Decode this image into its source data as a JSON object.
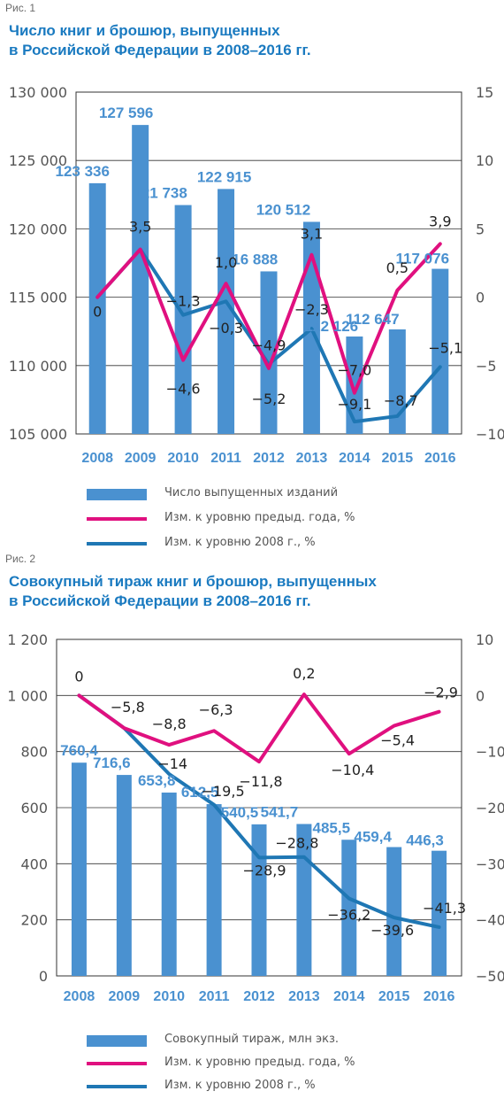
{
  "colors": {
    "bar": "#4a91d0",
    "line_prev": "#e0107f",
    "line_2008": "#1f77b4",
    "bar_label": "#4a91d0",
    "title": "#1a7ac0"
  },
  "charts": [
    {
      "fig_label": "Рис. 1",
      "title_lines": [
        "Число книг и брошюр, выпущенных",
        "в Российской Федерации в 2008–2016 гг."
      ],
      "legend": [
        "Число выпущенных изданий",
        "Изм. к уровню предыд. года, %",
        "Изм. к уровню 2008 г., %"
      ]
    },
    {
      "fig_label": "Рис. 2",
      "title_lines": [
        "Совокупный тираж книг и брошюр, выпущенных",
        "в Российской Федерации в 2008–2016 гг."
      ],
      "legend": [
        "Совокупный тираж, млн экз.",
        "Изм. к уровню предыд. года, %",
        "Изм. к уровню 2008 г., %"
      ]
    }
  ],
  "chart_data": [
    {
      "type": "bar",
      "categories": [
        "2008",
        "2009",
        "2010",
        "2011",
        "2012",
        "2013",
        "2014",
        "2015",
        "2016"
      ],
      "ylim": [
        105000,
        130000
      ],
      "y_ticks": [
        "105 000",
        "110 000",
        "115 000",
        "120 000",
        "125 000",
        "130 000"
      ],
      "y2lim": [
        -10,
        15
      ],
      "y2_ticks": [
        "−10",
        "−5",
        "0",
        "5",
        "10",
        "15"
      ],
      "series": [
        {
          "name": "Число выпущенных изданий",
          "kind": "bar",
          "axis": "left",
          "values": [
            123336,
            127596,
            121738,
            122915,
            116888,
            120512,
            112126,
            112647,
            117076
          ],
          "labels": [
            "123 336",
            "127 596",
            "121 738",
            "122 915",
            "116 888",
            "120 512",
            "112 126",
            "112 647",
            "117 076"
          ]
        },
        {
          "name": "Изм. к уровню предыд. года, %",
          "kind": "line",
          "axis": "right",
          "values": [
            0,
            3.5,
            -4.6,
            1.0,
            -5.2,
            3.1,
            -7.0,
            0.5,
            3.9
          ],
          "labels": [
            "0",
            "3,5",
            "−4,6",
            "1,0",
            "−5,2",
            "3,1",
            "−7,0",
            "0,5",
            "3,9"
          ]
        },
        {
          "name": "Изм. к уровню 2008 г., %",
          "kind": "line",
          "axis": "right",
          "values": [
            null,
            null,
            -1.3,
            -0.3,
            -4.9,
            -2.3,
            -9.1,
            -8.7,
            -5.1
          ],
          "labels": [
            null,
            null,
            "−1,3",
            "−0,3",
            "−4,9",
            "−2,3",
            "−9,1",
            "−8,7",
            "−5,1"
          ]
        }
      ]
    },
    {
      "type": "bar",
      "categories": [
        "2008",
        "2009",
        "2010",
        "2011",
        "2012",
        "2013",
        "2014",
        "2015",
        "2016"
      ],
      "ylim": [
        0,
        1200
      ],
      "y_ticks": [
        "0",
        "200",
        "400",
        "600",
        "800",
        "1 000",
        "1 200"
      ],
      "y2lim": [
        -50,
        10
      ],
      "y2_ticks": [
        "−50",
        "−40",
        "−30",
        "−20",
        "−10",
        "0",
        "10"
      ],
      "series": [
        {
          "name": "Совокупный тираж, млн экз.",
          "kind": "bar",
          "axis": "left",
          "values": [
            760.4,
            716.6,
            653.8,
            612.5,
            540.5,
            541.7,
            485.5,
            459.4,
            446.3
          ],
          "labels": [
            "760,4",
            "716,6",
            "653,8",
            "612,5",
            "540,5",
            "541,7",
            "485,5",
            "459,4",
            "446,3"
          ]
        },
        {
          "name": "Изм. к уровню предыд. года, %",
          "kind": "line",
          "axis": "right",
          "values": [
            0,
            -5.8,
            -8.8,
            -6.3,
            -11.8,
            0.2,
            -10.4,
            -5.4,
            -2.9
          ],
          "labels": [
            "0",
            "−5,8",
            "−8,8",
            "−6,3",
            "−11,8",
            "0,2",
            "−10,4",
            "−5,4",
            "−2,9"
          ]
        },
        {
          "name": "Изм. к уровню 2008 г., %",
          "kind": "line",
          "axis": "right",
          "values": [
            null,
            -5.8,
            -14,
            -19.5,
            -28.9,
            -28.8,
            -36.2,
            -39.6,
            -41.3
          ],
          "labels": [
            null,
            null,
            "−14",
            "−19,5",
            "−28,9",
            "−28,8",
            "−36,2",
            "−39,6",
            "−41,3"
          ]
        }
      ]
    }
  ]
}
